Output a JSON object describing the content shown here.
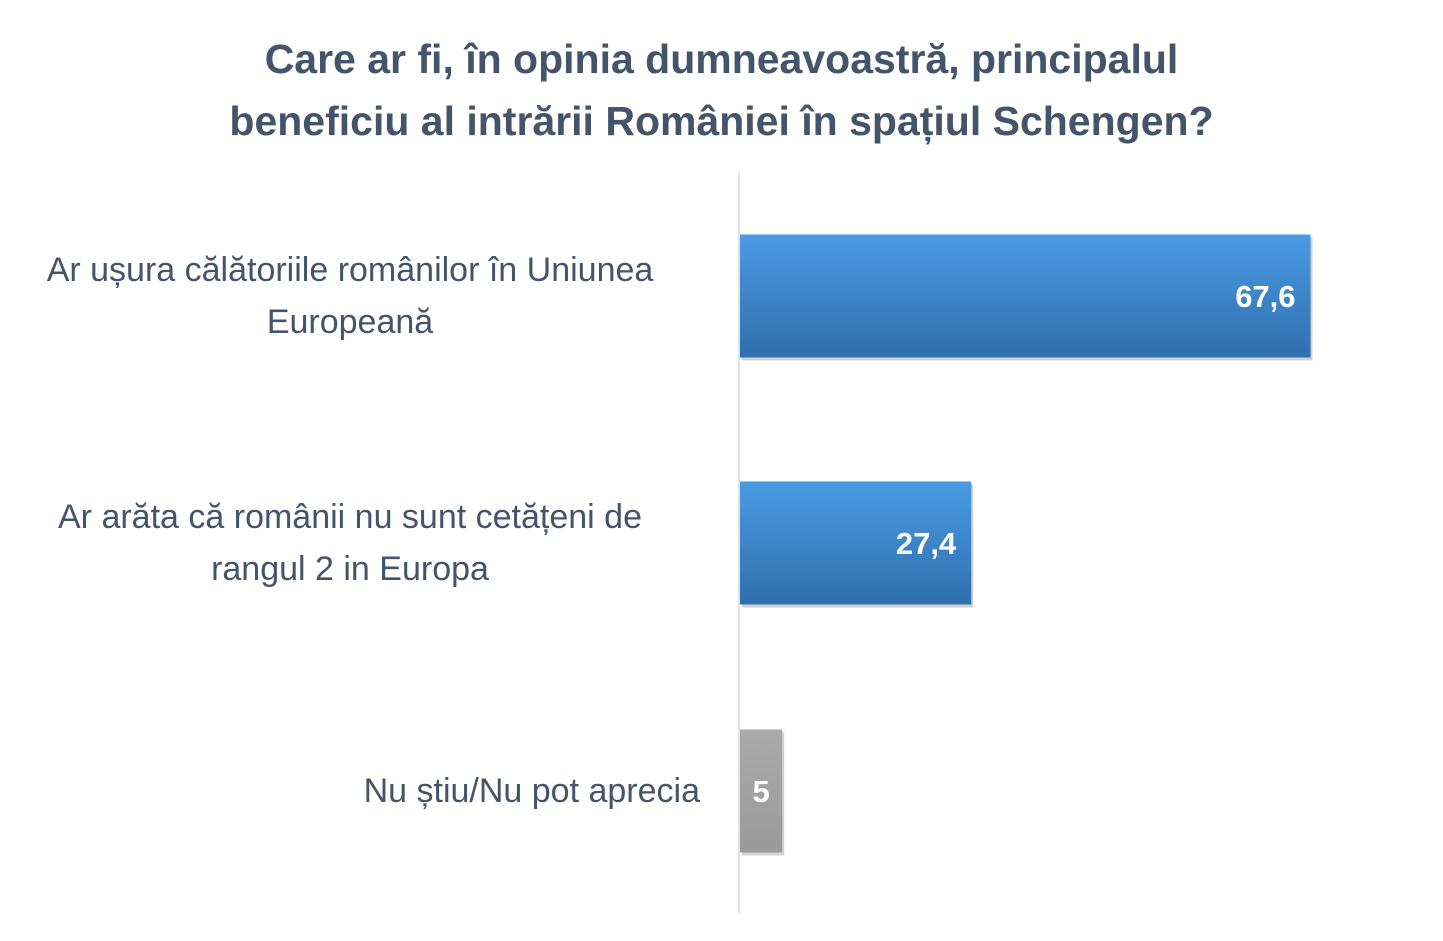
{
  "chart_data": {
    "type": "bar",
    "orientation": "horizontal",
    "title": "Care ar fi, în opinia dumneavoastră, principalul beneficiu al intrării României în spațiul Schengen?",
    "title_lines": [
      "Care ar fi, în opinia dumneavoastră, principalul",
      "beneficiu al intrării României în spațiul Schengen?"
    ],
    "categories": [
      "Ar ușura călătoriile românilor în Uniunea Europeană",
      "Ar arăta că românii nu sunt cetățeni de rangul 2 in Europa",
      "Nu știu/Nu pot aprecia"
    ],
    "category_lines": [
      [
        "Ar ușura călătoriile românilor în Uniunea",
        "Europeană"
      ],
      [
        "Ar arăta că românii nu sunt cetățeni de",
        "rangul 2 in Europa"
      ],
      [
        "Nu știu/Nu pot aprecia"
      ]
    ],
    "values": [
      67.6,
      27.4,
      5
    ],
    "value_labels": [
      "67,6",
      "27,4",
      "5"
    ],
    "bar_colors": [
      "#3b8ad9",
      "#3b8ad9",
      "#a6a6a6"
    ],
    "bar_gradients": [
      [
        "#4a9be3",
        "#2f6fad"
      ],
      [
        "#4a9be3",
        "#2f6fad"
      ],
      [
        "#aaaaaa",
        "#9a9a9a"
      ]
    ],
    "xlim": [
      0,
      80
    ],
    "legend": "none",
    "grid": false
  }
}
